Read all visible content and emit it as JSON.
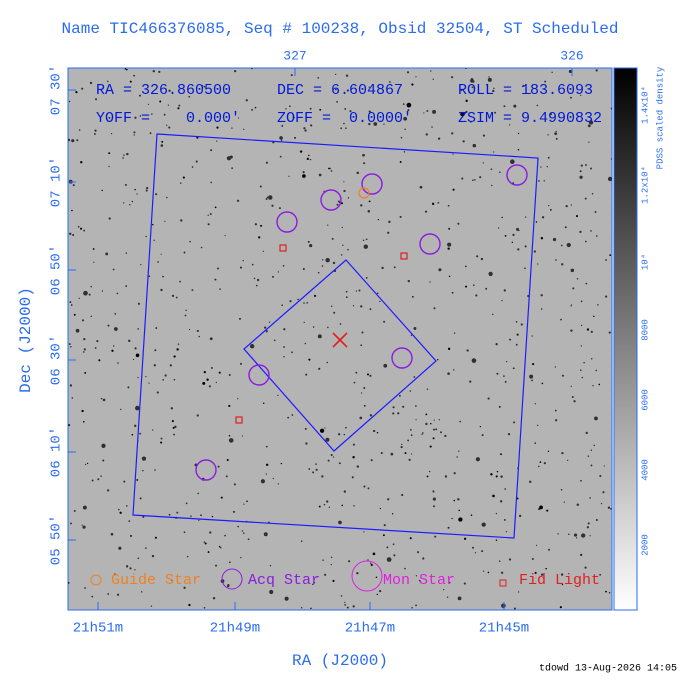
{
  "title": "Name TIC466376085, Seq # 100238, Obsid 32504, ST Scheduled",
  "header": {
    "ra": "RA = 326.860500",
    "dec": "DEC = 6.604867",
    "roll": "ROLL = 183.6093",
    "yoff": "YOFF =    0.000'",
    "zoff": "ZOFF =  0.0000'",
    "zsim": "ZSIM = 9.4990832"
  },
  "axes": {
    "x_label": "RA (J2000)",
    "y_label": "Dec (J2000)",
    "top_ticks": [
      "327",
      "326"
    ],
    "bottom_ticks": [
      "21h51m",
      "21h49m",
      "21h47m",
      "21h45m"
    ],
    "left_ticks": [
      "07 30'",
      "07 10'",
      "06 50'",
      "06 30'",
      "06 10'",
      "05 50'"
    ]
  },
  "colorbar": {
    "label": "PDSS scaled density",
    "ticks": [
      "1.4x10⁴",
      "1.2x10⁴",
      "10⁴",
      "8000",
      "6000",
      "4000",
      "2000"
    ]
  },
  "legend": [
    "Guide Star",
    "Acq Star",
    "Mon Star",
    "Fid Light"
  ],
  "footer": "tdowd 13-Aug-2026 14:05"
}
